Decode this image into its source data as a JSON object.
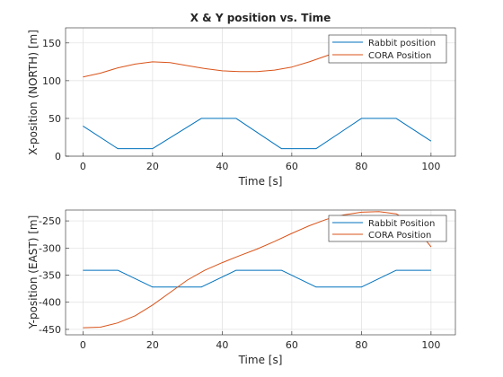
{
  "figure": {
    "background": "#ffffff"
  },
  "chart_data": [
    {
      "type": "line",
      "title": "X & Y position vs. Time",
      "xlabel": "Time [s]",
      "ylabel": "X-position (NORTH) [m]",
      "xlim": [
        -5,
        107
      ],
      "ylim": [
        0,
        170
      ],
      "xticks": [
        0,
        20,
        40,
        60,
        80,
        100
      ],
      "yticks": [
        0,
        50,
        100,
        150
      ],
      "grid": true,
      "legend_position": "top-right",
      "series": [
        {
          "name": "Rabbit position",
          "color": "#0072BD",
          "x": [
            0,
            10,
            20,
            34,
            44,
            57,
            67,
            80,
            90,
            100
          ],
          "y": [
            40,
            10,
            10,
            50,
            50,
            10,
            10,
            50,
            50,
            20
          ]
        },
        {
          "name": "CORA Position",
          "color": "#D95319",
          "x": [
            0,
            5,
            10,
            15,
            20,
            25,
            30,
            35,
            40,
            45,
            50,
            55,
            60,
            65,
            70,
            75,
            80,
            85,
            90,
            95,
            100
          ],
          "y": [
            105,
            110,
            117,
            122,
            125,
            124,
            120,
            116,
            113,
            112,
            112,
            114,
            118,
            125,
            133,
            141,
            146,
            149,
            150,
            150,
            150
          ]
        }
      ]
    },
    {
      "type": "line",
      "title": "",
      "xlabel": "Time [s]",
      "ylabel": "Y-position (EAST) [m]",
      "xlim": [
        -5,
        107
      ],
      "ylim": [
        -460,
        -230
      ],
      "xticks": [
        0,
        20,
        40,
        60,
        80,
        100
      ],
      "yticks": [
        -450,
        -400,
        -350,
        -300,
        -250
      ],
      "grid": true,
      "legend_position": "top-right",
      "series": [
        {
          "name": "Rabbit Position",
          "color": "#0072BD",
          "x": [
            0,
            10,
            20,
            34,
            44,
            57,
            67,
            80,
            90,
            100
          ],
          "y": [
            -341,
            -341,
            -372,
            -372,
            -341,
            -341,
            -372,
            -372,
            -341,
            -341
          ]
        },
        {
          "name": "CORA Position",
          "color": "#D95319",
          "x": [
            0,
            5,
            10,
            15,
            20,
            25,
            30,
            35,
            40,
            45,
            50,
            55,
            60,
            65,
            70,
            75,
            80,
            85,
            90,
            95,
            100
          ],
          "y": [
            -447,
            -446,
            -438,
            -425,
            -405,
            -382,
            -359,
            -341,
            -327,
            -314,
            -302,
            -288,
            -273,
            -259,
            -247,
            -239,
            -234,
            -233,
            -237,
            -257,
            -298
          ]
        }
      ]
    }
  ]
}
